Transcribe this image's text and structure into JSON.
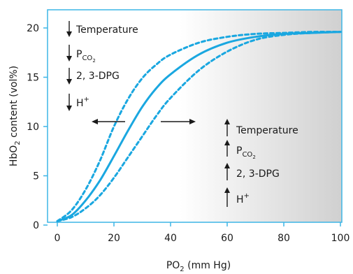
{
  "colors": {
    "curve": "#1aa7e0",
    "frame": "#3db5e6",
    "background_left": "#ffffff",
    "background_right": "#d0d0d0",
    "text": "#1a1a1a"
  },
  "chart_data": {
    "type": "line",
    "xlabel_main": "PO",
    "xlabel_sub": "2",
    "xlabel_rest": " (mm Hg)",
    "ylabel_main": "HbO",
    "ylabel_sub": "2",
    "ylabel_rest": " content (vol%)",
    "xlim": [
      0,
      100
    ],
    "ylim": [
      0,
      21
    ],
    "xticks": [
      "0",
      "20",
      "40",
      "60",
      "80",
      "100"
    ],
    "yticks": [
      "0",
      "5",
      "10",
      "15",
      "20"
    ],
    "grid": false,
    "series": [
      {
        "style": "dotted",
        "x": [
          0,
          5,
          10,
          15,
          20,
          25,
          30,
          35,
          40,
          50,
          60,
          70,
          80,
          90,
          100
        ],
        "y": [
          0.4,
          1.5,
          3.6,
          6.5,
          10.0,
          12.8,
          14.9,
          16.3,
          17.3,
          18.5,
          19.1,
          19.4,
          19.5,
          19.6,
          19.6
        ]
      },
      {
        "style": "solid",
        "x": [
          0,
          5,
          10,
          15,
          20,
          25,
          30,
          35,
          40,
          50,
          60,
          70,
          80,
          90,
          100
        ],
        "y": [
          0.4,
          1.0,
          2.5,
          4.5,
          7.0,
          9.6,
          12.0,
          13.9,
          15.3,
          17.3,
          18.5,
          19.1,
          19.4,
          19.5,
          19.6
        ]
      },
      {
        "style": "dotted",
        "x": [
          0,
          5,
          10,
          15,
          20,
          25,
          30,
          35,
          40,
          50,
          60,
          70,
          80,
          90,
          100
        ],
        "y": [
          0.4,
          0.8,
          1.7,
          3.0,
          4.8,
          6.9,
          9.0,
          11.1,
          12.9,
          15.7,
          17.6,
          18.8,
          19.3,
          19.5,
          19.6
        ]
      }
    ],
    "left_annotation": {
      "items": [
        {
          "arrow": "down",
          "text": "Temperature",
          "sub": ""
        },
        {
          "arrow": "down",
          "text": "P",
          "sub": "CO2"
        },
        {
          "arrow": "down",
          "text": "2, 3-DPG",
          "sub": ""
        },
        {
          "arrow": "down",
          "text": "H",
          "sup": "+"
        }
      ]
    },
    "right_annotation": {
      "items": [
        {
          "arrow": "up",
          "text": "Temperature",
          "sub": ""
        },
        {
          "arrow": "up",
          "text": "P",
          "sub": "CO2"
        },
        {
          "arrow": "up",
          "text": "2, 3-DPG",
          "sub": ""
        },
        {
          "arrow": "up",
          "text": "H",
          "sup": "+"
        }
      ]
    },
    "shift_arrows": [
      "left",
      "right"
    ]
  }
}
